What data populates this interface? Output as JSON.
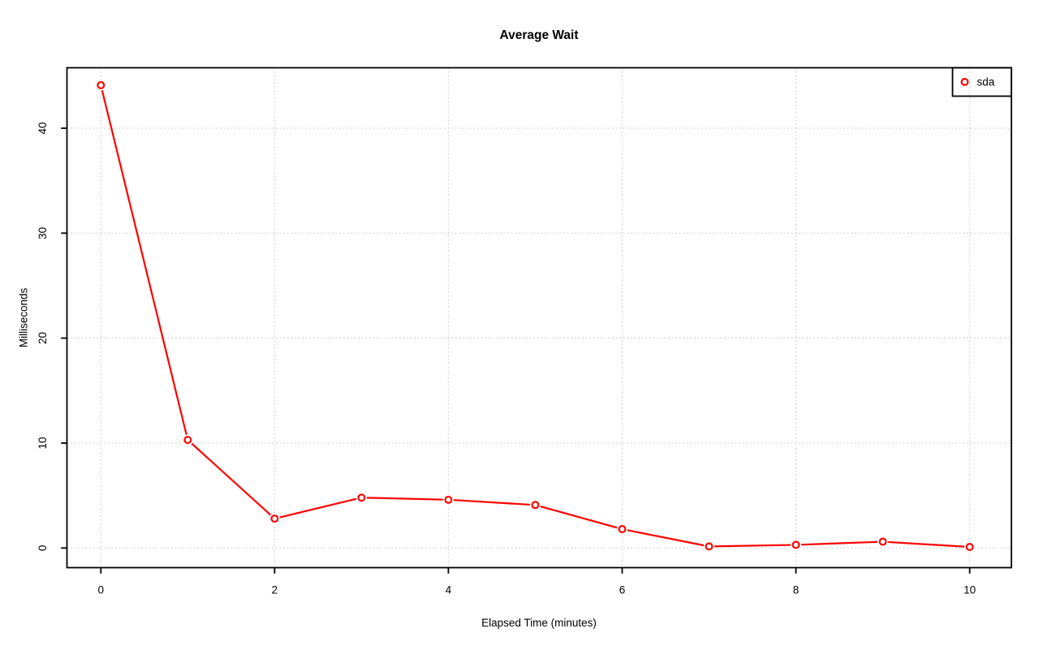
{
  "chart_data": {
    "type": "line",
    "title": "Average Wait",
    "xlabel": "Elapsed Time (minutes)",
    "ylabel": "Milliseconds",
    "x": [
      0,
      1,
      2,
      3,
      4,
      5,
      6,
      7,
      8,
      9,
      10
    ],
    "series": [
      {
        "name": "sda",
        "color": "#ff0000",
        "marker": "open-circle",
        "values": [
          44.1,
          10.3,
          2.8,
          4.8,
          4.6,
          4.1,
          1.8,
          0.15,
          0.3,
          0.6,
          0.1
        ]
      }
    ],
    "x_ticks": [
      0,
      2,
      4,
      6,
      8,
      10
    ],
    "y_ticks": [
      0,
      10,
      20,
      30,
      40
    ],
    "xlim": [
      -0.39,
      10.48
    ],
    "ylim": [
      -1.87,
      45.76
    ],
    "grid": true,
    "grid_style": "dotted",
    "legend": {
      "position": "top-right",
      "entries": [
        {
          "label": "sda",
          "color": "#ff0000",
          "marker": "open-circle"
        }
      ]
    },
    "colors": {
      "series": "#ff0000",
      "grid": "#c8c8c8",
      "axis": "#000000",
      "background": "#ffffff"
    }
  }
}
